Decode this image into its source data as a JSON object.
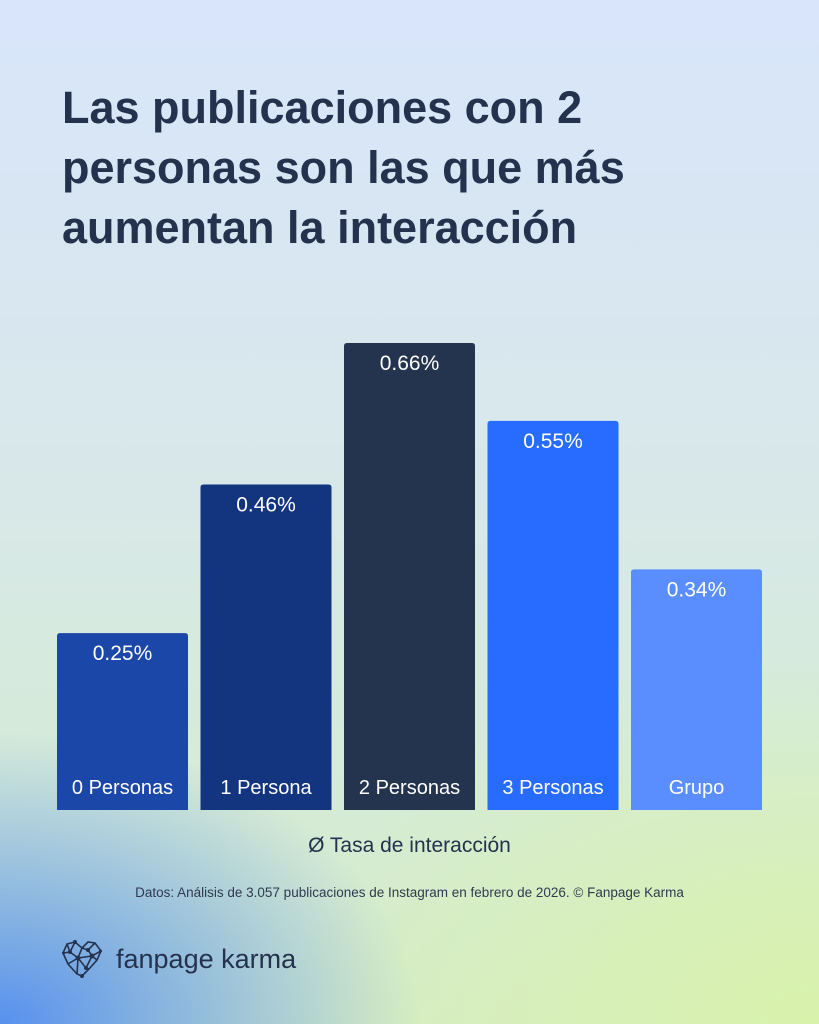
{
  "title": "Las publicaciones con 2 personas son las que más aumentan la interacción",
  "chart_data": {
    "type": "bar",
    "title": "Las publicaciones con 2 personas son las que más aumentan la interacción",
    "categories": [
      "0 Personas",
      "1 Persona",
      "2 Personas",
      "3 Personas",
      "Grupo"
    ],
    "values": [
      0.25,
      0.46,
      0.66,
      0.55,
      0.34
    ],
    "value_labels": [
      "0.25%",
      "0.46%",
      "0.66%",
      "0.55%",
      "0.34%"
    ],
    "colors": [
      "#1b47a8",
      "#13357f",
      "#24344f",
      "#276cfe",
      "#5a8eff"
    ],
    "xlabel": "Ø Tasa de interacción",
    "ylabel": "",
    "ylim": [
      0,
      0.66
    ],
    "grid": false
  },
  "source": "Datos: Análisis de 3.057 publicaciones de Instagram en febrero de 2026. © Fanpage Karma",
  "brand": {
    "name": "fanpage karma",
    "icon": "heart-network-icon"
  }
}
